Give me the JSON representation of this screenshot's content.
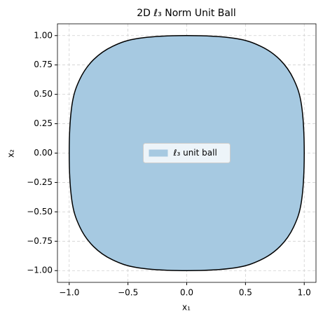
{
  "chart_data": {
    "type": "area",
    "title": "2D ℓ₃ Norm Unit Ball",
    "xlabel": "x₁",
    "ylabel": "x₂",
    "series": [
      {
        "name": "ℓ₃ unit ball",
        "color": "#a6c9e1",
        "edgecolor": "#000000",
        "x": [
          1,
          0.977,
          0.909,
          0.794,
          0.63,
          0.406,
          0,
          -0.406,
          -0.63,
          -0.794,
          -0.909,
          -0.977,
          -1,
          -0.977,
          -0.909,
          -0.794,
          -0.63,
          -0.406,
          0,
          0.406,
          0.63,
          0.794,
          0.909,
          0.977,
          1
        ],
        "y": [
          0,
          0.406,
          0.63,
          0.794,
          0.909,
          0.977,
          1,
          0.977,
          0.909,
          0.794,
          0.63,
          0.406,
          0,
          -0.406,
          -0.63,
          -0.794,
          -0.909,
          -0.977,
          -1,
          -0.977,
          -0.909,
          -0.794,
          -0.63,
          -0.406,
          0
        ]
      }
    ],
    "xlim": [
      -1.1,
      1.1
    ],
    "ylim": [
      -1.1,
      1.1
    ],
    "xticks": [
      {
        "value": -1,
        "label": "−1.0"
      },
      {
        "value": -0.5,
        "label": "−0.5"
      },
      {
        "value": 0,
        "label": "0.0"
      },
      {
        "value": 0.5,
        "label": "0.5"
      },
      {
        "value": 1,
        "label": "1.0"
      }
    ],
    "yticks": [
      {
        "value": -1,
        "label": "−1.00"
      },
      {
        "value": -0.75,
        "label": "−0.75"
      },
      {
        "value": -0.5,
        "label": "−0.50"
      },
      {
        "value": -0.25,
        "label": "−0.25"
      },
      {
        "value": 0,
        "label": "0.00"
      },
      {
        "value": 0.25,
        "label": "0.25"
      },
      {
        "value": 0.5,
        "label": "0.50"
      },
      {
        "value": 0.75,
        "label": "0.75"
      },
      {
        "value": 1,
        "label": "1.00"
      }
    ],
    "grid": true,
    "legend": "center"
  }
}
